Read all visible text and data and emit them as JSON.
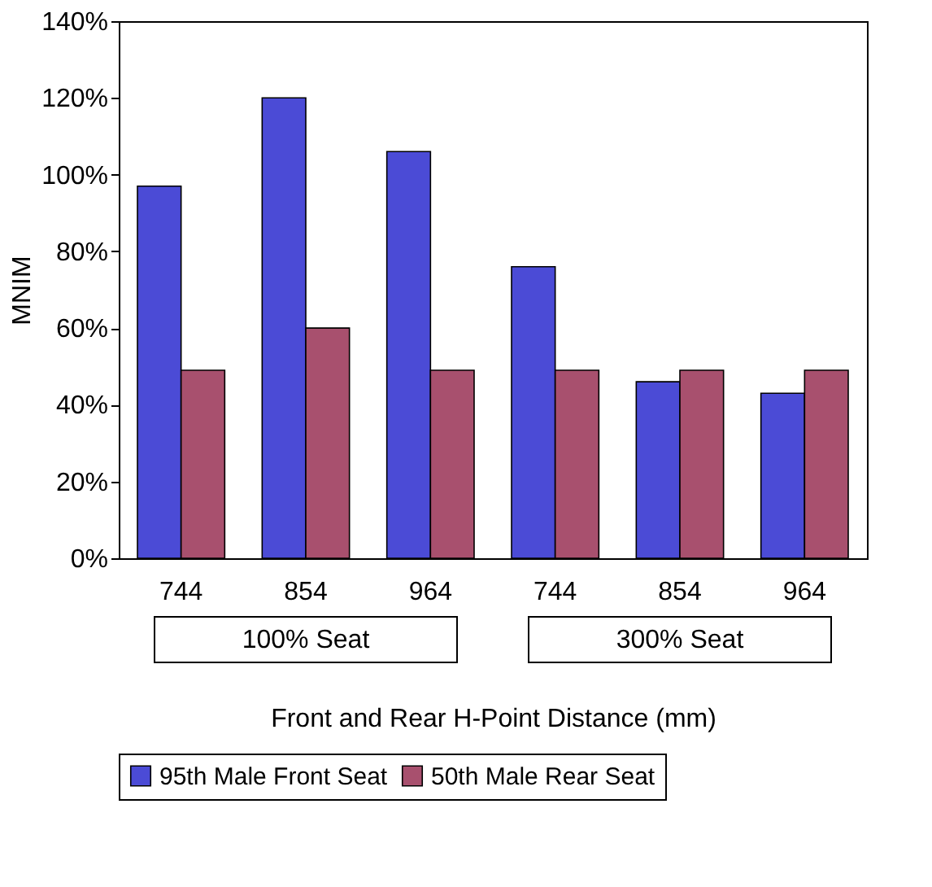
{
  "chart_data": {
    "type": "bar",
    "xlabel": "Front and Rear H-Point Distance (mm)",
    "ylabel": "MNIM",
    "categories": [
      "744",
      "854",
      "964",
      "744",
      "854",
      "964"
    ],
    "series": [
      {
        "name": "95th Male Front Seat",
        "color": "#4b4bd6",
        "values": [
          97,
          120,
          106,
          76,
          46,
          43
        ]
      },
      {
        "name": "50th Male Rear Seat",
        "color": "#a8506e",
        "values": [
          49,
          60,
          49,
          49,
          49,
          49
        ]
      }
    ],
    "ylim": [
      0,
      140
    ],
    "yticks": [
      {
        "value": 0,
        "label": "0%"
      },
      {
        "value": 20,
        "label": "20%"
      },
      {
        "value": 40,
        "label": "40%"
      },
      {
        "value": 60,
        "label": "60%"
      },
      {
        "value": 80,
        "label": "80%"
      },
      {
        "value": 100,
        "label": "100%"
      },
      {
        "value": 120,
        "label": "120%"
      },
      {
        "value": 140,
        "label": "140%"
      }
    ],
    "annotations": [
      "100% Seat",
      "300% Seat"
    ],
    "grid": false,
    "legend": "bottom"
  }
}
